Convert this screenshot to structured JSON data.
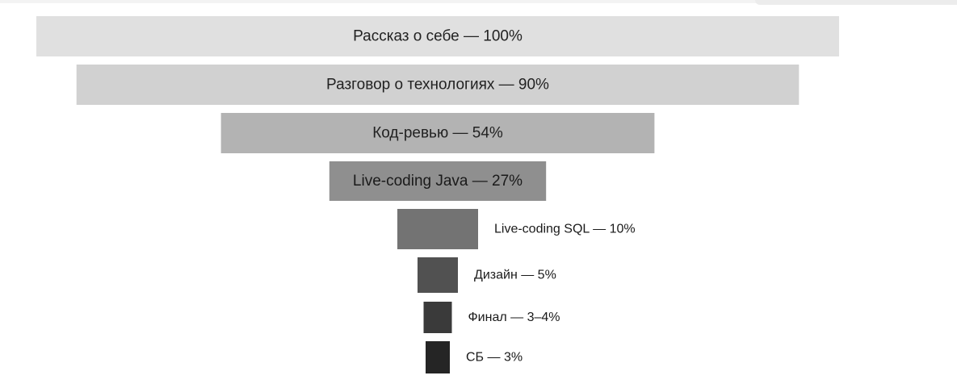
{
  "chart_data": {
    "type": "bar",
    "orientation": "funnel",
    "stages": [
      {
        "label": "Рассказ о себе — 100%",
        "value": 100,
        "color": "#e0e0e0",
        "text_color": "#222222"
      },
      {
        "label": "Разговор о технологиях — 90%",
        "value": 90,
        "color": "#d1d1d1",
        "text_color": "#222222"
      },
      {
        "label": "Код-ревью — 54%",
        "value": 54,
        "color": "#b3b3b3",
        "text_color": "#222222"
      },
      {
        "label": "Live-coding Java — 27%",
        "value": 27,
        "color": "#8f8f8f",
        "text_color": "#1a1a1a"
      },
      {
        "label": "Live-coding SQL — 10%",
        "value": 10,
        "color": "#737373",
        "text_color": "#1a1a1a"
      },
      {
        "label": "Дизайн — 5%",
        "value": 5,
        "color": "#515151",
        "text_color": "#1a1a1a"
      },
      {
        "label": "Финал — 3–4%",
        "value": 3.5,
        "color": "#3a3a3a",
        "text_color": "#1a1a1a"
      },
      {
        "label": "СБ — 3%",
        "value": 3,
        "color": "#252525",
        "text_color": "#1a1a1a"
      }
    ]
  }
}
